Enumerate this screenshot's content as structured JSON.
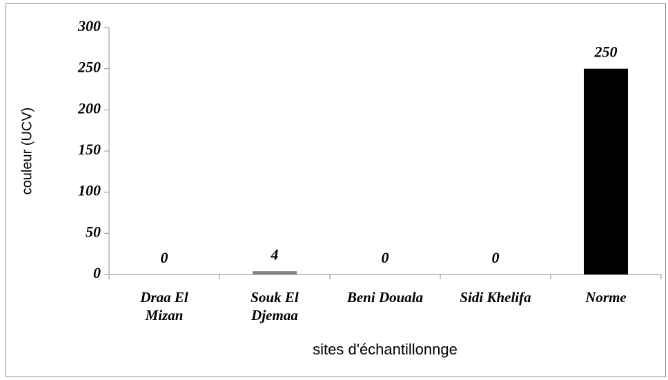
{
  "chart_data": {
    "type": "bar",
    "categories": [
      "Draa El Mizan",
      "Souk El Djemaa",
      "Beni Douala",
      "Sidi Khelifa",
      "Norme"
    ],
    "values": [
      0,
      4,
      0,
      0,
      250
    ],
    "colors": [
      "#808080",
      "#808080",
      "#808080",
      "#808080",
      "#000000"
    ],
    "ylim": [
      0,
      300
    ],
    "yticks": [
      0,
      50,
      100,
      150,
      200,
      250,
      300
    ],
    "ylabel": "couleur (UCV)",
    "xlabel": "sites d'échantillonnge",
    "grid": false
  }
}
